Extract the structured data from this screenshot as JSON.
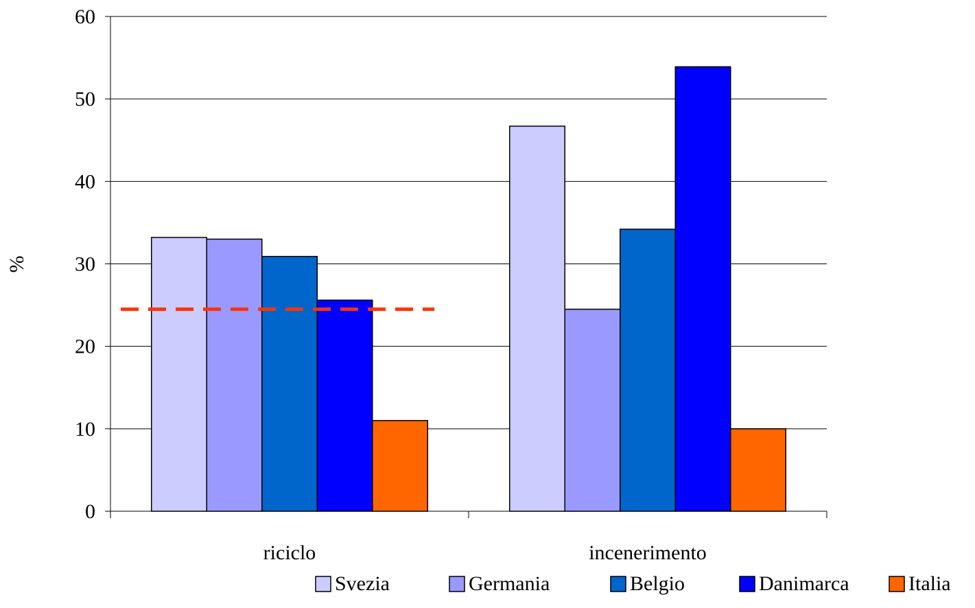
{
  "chart_data": {
    "type": "bar",
    "title": "",
    "xlabel": "",
    "ylabel": "%",
    "ylim": [
      0,
      60
    ],
    "yticks": [
      "0",
      "10",
      "20",
      "30",
      "40",
      "50",
      "60"
    ],
    "grid": "horizontal",
    "legend_position": "bottom",
    "categories": [
      "riciclo",
      "incenerimento"
    ],
    "series": [
      {
        "name": "Svezia",
        "color": "#CCCCFF",
        "values": [
          33.2,
          46.7
        ]
      },
      {
        "name": "Germania",
        "color": "#9999FF",
        "values": [
          33.0,
          24.5
        ]
      },
      {
        "name": "Belgio",
        "color": "#0066CC",
        "values": [
          30.9,
          34.2
        ]
      },
      {
        "name": "Danimarca",
        "color": "#0000FF",
        "values": [
          25.6,
          53.9
        ]
      },
      {
        "name": "Italia",
        "color": "#FF6600",
        "values": [
          11.0,
          10.0
        ]
      }
    ],
    "reference_line": {
      "value": 24.5,
      "color": "#FF3300",
      "style": "dashed",
      "category": "riciclo"
    }
  }
}
